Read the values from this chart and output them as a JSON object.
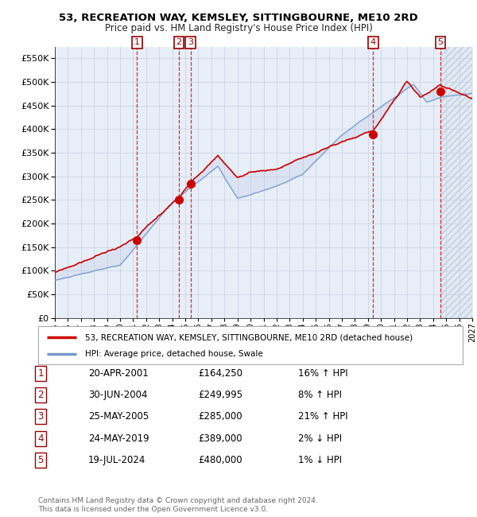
{
  "title": "53, RECREATION WAY, KEMSLEY, SITTINGBOURNE, ME10 2RD",
  "subtitle": "Price paid vs. HM Land Registry's House Price Index (HPI)",
  "ylim": [
    0,
    575000
  ],
  "yticks": [
    0,
    50000,
    100000,
    150000,
    200000,
    250000,
    300000,
    350000,
    400000,
    450000,
    500000,
    550000
  ],
  "xlim_start": 1995.0,
  "xlim_end": 2027.0,
  "background_color": "#ffffff",
  "plot_bg_color": "#e8eef8",
  "grid_color": "#c8d0e0",
  "hpi_line_color": "#7799cc",
  "price_line_color": "#cc0000",
  "sales": [
    {
      "num": 1,
      "date": "20-APR-2001",
      "price": 164250,
      "pct": "16%",
      "direction": "↑",
      "year": 2001.3
    },
    {
      "num": 2,
      "date": "30-JUN-2004",
      "price": 249995,
      "pct": "8%",
      "direction": "↑",
      "year": 2004.5
    },
    {
      "num": 3,
      "date": "25-MAY-2005",
      "price": 285000,
      "pct": "21%",
      "direction": "↑",
      "year": 2005.4
    },
    {
      "num": 4,
      "date": "24-MAY-2019",
      "price": 389000,
      "pct": "2%",
      "direction": "↓",
      "year": 2019.4
    },
    {
      "num": 5,
      "date": "19-JUL-2024",
      "price": 480000,
      "pct": "1%",
      "direction": "↓",
      "year": 2024.55
    }
  ],
  "legend_label_red": "53, RECREATION WAY, KEMSLEY, SITTINGBOURNE, ME10 2RD (detached house)",
  "legend_label_blue": "HPI: Average price, detached house, Swale",
  "footer": "Contains HM Land Registry data © Crown copyright and database right 2024.\nThis data is licensed under the Open Government Licence v3.0.",
  "xtick_years": [
    1995,
    1996,
    1997,
    1998,
    1999,
    2000,
    2001,
    2002,
    2003,
    2004,
    2005,
    2006,
    2007,
    2008,
    2009,
    2010,
    2011,
    2012,
    2013,
    2014,
    2015,
    2016,
    2017,
    2018,
    2019,
    2020,
    2021,
    2022,
    2023,
    2024,
    2025,
    2026,
    2027
  ],
  "table_entries": [
    {
      "num": "1",
      "date": "20-APR-2001",
      "price": "£164,250",
      "pct": "16% ↑ HPI"
    },
    {
      "num": "2",
      "date": "30-JUN-2004",
      "price": "£249,995",
      "pct": "8% ↑ HPI"
    },
    {
      "num": "3",
      "date": "25-MAY-2005",
      "price": "£285,000",
      "pct": "21% ↑ HPI"
    },
    {
      "num": "4",
      "date": "24-MAY-2019",
      "price": "£389,000",
      "pct": "2% ↓ HPI"
    },
    {
      "num": "5",
      "date": "19-JUL-2024",
      "price": "£480,000",
      "pct": "1% ↓ HPI"
    }
  ]
}
